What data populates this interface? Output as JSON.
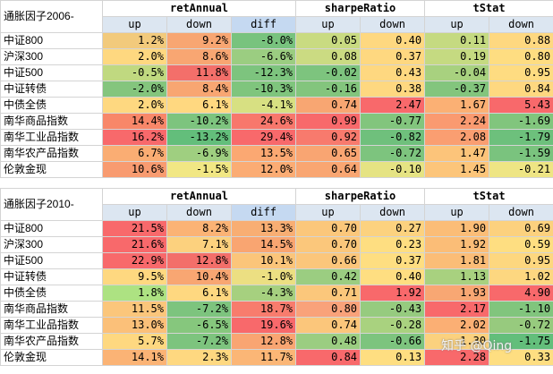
{
  "tables": [
    {
      "title": "通胀因子2006-",
      "groups": [
        "retAnnual",
        "sharpeRatio",
        "tStat"
      ],
      "subheaders": [
        "up",
        "down",
        "diff",
        "up",
        "down",
        "up",
        "down"
      ],
      "rows": [
        [
          "中证800",
          "1.2%",
          "9.2%",
          "-8.0%",
          "0.05",
          "0.40",
          "0.11",
          "0.88"
        ],
        [
          "沪深300",
          "2.0%",
          "8.6%",
          "-6.6%",
          "0.08",
          "0.37",
          "0.19",
          "0.80"
        ],
        [
          "中证500",
          "-0.5%",
          "11.8%",
          "-12.3%",
          "-0.02",
          "0.43",
          "-0.04",
          "0.95"
        ],
        [
          "中证转债",
          "-2.0%",
          "8.4%",
          "-10.3%",
          "-0.16",
          "0.38",
          "-0.37",
          "0.84"
        ],
        [
          "中债全债",
          "2.0%",
          "6.1%",
          "-4.1%",
          "0.74",
          "2.47",
          "1.67",
          "5.43"
        ],
        [
          "南华商品指数",
          "14.4%",
          "-10.2%",
          "24.6%",
          "0.99",
          "-0.77",
          "2.24",
          "-1.69"
        ],
        [
          "南华工业品指数",
          "16.2%",
          "-13.2%",
          "29.4%",
          "0.92",
          "-0.82",
          "2.08",
          "-1.79"
        ],
        [
          "南华农产品指数",
          "6.7%",
          "-6.9%",
          "13.5%",
          "0.65",
          "-0.72",
          "1.47",
          "-1.59"
        ],
        [
          "伦敦金现",
          "10.6%",
          "-1.5%",
          "12.0%",
          "0.64",
          "-0.10",
          "1.45",
          "-0.21"
        ]
      ],
      "colors": [
        [
          "#f2ca7c",
          "#f8a672",
          "#78c37e",
          "#c9db81",
          "#fed880",
          "#c5da81",
          "#fed880"
        ],
        [
          "#fed880",
          "#f8a672",
          "#9bcd81",
          "#cbdb82",
          "#fed880",
          "#c5da81",
          "#fedd81"
        ],
        [
          "#c0d980",
          "#f36f6a",
          "#7dc47e",
          "#7dc47e",
          "#fed880",
          "#a8d17f",
          "#fedc81"
        ],
        [
          "#84c57d",
          "#f8a672",
          "#7fc57d",
          "#83c57d",
          "#fed880",
          "#83c57d",
          "#fed880"
        ],
        [
          "#fed880",
          "#ffd880",
          "#d7e082",
          "#f8a672",
          "#f8696b",
          "#fbb074",
          "#f8696b"
        ],
        [
          "#f88769",
          "#7dc47e",
          "#f8776c",
          "#f8696b",
          "#82c57d",
          "#fa9a70",
          "#81c57d"
        ],
        [
          "#f8696b",
          "#63be7b",
          "#f8696b",
          "#f87a6d",
          "#6fc07c",
          "#fa9e71",
          "#6dc07c"
        ],
        [
          "#faad73",
          "#9fcf80",
          "#fba872",
          "#f9a572",
          "#7dc47e",
          "#fcc47a",
          "#7ac37e"
        ],
        [
          "#f89b70",
          "#f1e784",
          "#fbac74",
          "#f9a672",
          "#e5e383",
          "#fcc57a",
          "#eee584"
        ]
      ]
    },
    {
      "title": "通胀因子2010-",
      "groups": [
        "retAnnual",
        "sharpeRatio",
        "tStat"
      ],
      "subheaders": [
        "up",
        "down",
        "diff",
        "up",
        "down",
        "up",
        "down"
      ],
      "rows": [
        [
          "中证800",
          "21.5%",
          "8.2%",
          "13.3%",
          "0.70",
          "0.27",
          "1.90",
          "0.69"
        ],
        [
          "沪深300",
          "21.6%",
          "7.1%",
          "14.5%",
          "0.70",
          "0.23",
          "1.92",
          "0.59"
        ],
        [
          "中证500",
          "22.9%",
          "12.8%",
          "10.1%",
          "0.66",
          "0.37",
          "1.81",
          "0.95"
        ],
        [
          "中证转债",
          "9.5%",
          "10.4%",
          "-1.0%",
          "0.42",
          "0.40",
          "1.13",
          "1.02"
        ],
        [
          "中债全债",
          "1.8%",
          "6.1%",
          "-4.3%",
          "0.71",
          "1.92",
          "1.93",
          "4.90"
        ],
        [
          "南华商品指数",
          "11.5%",
          "-7.2%",
          "18.7%",
          "0.80",
          "-0.43",
          "2.17",
          "-1.10"
        ],
        [
          "南华工业品指数",
          "13.0%",
          "-6.5%",
          "19.6%",
          "0.74",
          "-0.28",
          "2.02",
          "-0.72"
        ],
        [
          "南华农产品指数",
          "5.7%",
          "-7.2%",
          "12.8%",
          "0.48",
          "-0.66",
          "1.30",
          "-1.75"
        ],
        [
          "伦敦金现",
          "14.1%",
          "2.3%",
          "11.7%",
          "0.84",
          "0.13",
          "2.28",
          "0.33"
        ]
      ],
      "colors": [
        [
          "#f8696b",
          "#fbb375",
          "#f8ae73",
          "#fbc77b",
          "#fcd27f",
          "#fbbd77",
          "#fcd17e"
        ],
        [
          "#f8696b",
          "#fcd17e",
          "#f9a571",
          "#fbc77b",
          "#fede81",
          "#fbbd77",
          "#fede81"
        ],
        [
          "#f8696b",
          "#f36f6a",
          "#fbc57a",
          "#fbc67b",
          "#fede81",
          "#fbbd77",
          "#fdd77f"
        ],
        [
          "#fed880",
          "#f8a672",
          "#ecdf82",
          "#9bcd81",
          "#fede81",
          "#a8d17f",
          "#fdd780"
        ],
        [
          "#ade282",
          "#fed880",
          "#a6d07f",
          "#fbc77b",
          "#f8696b",
          "#f8a773",
          "#f8696b"
        ],
        [
          "#fbc67b",
          "#7dc47e",
          "#f87c6d",
          "#f9a27a",
          "#96cb7f",
          "#f8696b",
          "#81c57d"
        ],
        [
          "#fbc079",
          "#86c77d",
          "#f8696b",
          "#fbc67b",
          "#a9d27f",
          "#fbaf74",
          "#97ca7e"
        ],
        [
          "#fed880",
          "#7dc47e",
          "#f9a572",
          "#9bcd81",
          "#7dc47e",
          "#fbd17e",
          "#63be7b"
        ],
        [
          "#fbb375",
          "#fed880",
          "#fbb676",
          "#f8696b",
          "#fede81",
          "#f8696b",
          "#fede81"
        ]
      ]
    }
  ],
  "styles": {
    "title_bg": "#ffffff",
    "group_bg": "#ffffff",
    "sub_bg": "#dce6f1",
    "diff_header_bg": "#c5d9f1"
  },
  "watermark": "知乎 @Qing"
}
